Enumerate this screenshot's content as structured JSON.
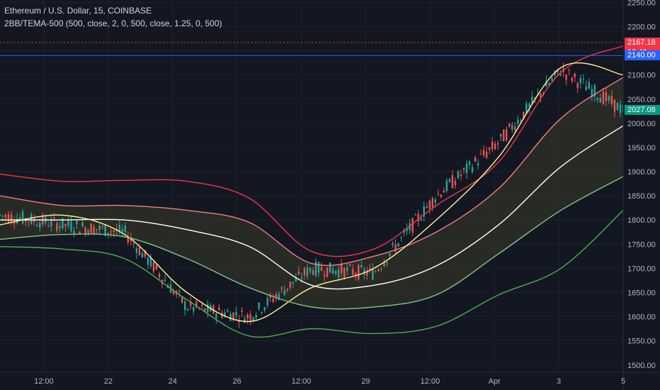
{
  "legend": {
    "symbol_line": "Ethereum / U.S. Dollar, 15, COINBASE",
    "indicator_line": "2BB/TEMA-500 (500, close, 2, 0, 500, close, 1.25, 0, 500)"
  },
  "price_tags": {
    "upper_band": {
      "price": "2167.18",
      "time": "13:48",
      "color": "#f23645"
    },
    "alert_line": {
      "price": "2140.00",
      "color": "#2962ff"
    },
    "last_price": {
      "price": "2027.08",
      "color": "#089981"
    }
  },
  "chart_data": {
    "type": "line",
    "title": "",
    "x_ticks": [
      "12:00",
      "22",
      "24",
      "26",
      "12:00",
      "29",
      "12:00",
      "Apr",
      "3",
      "5"
    ],
    "y_ticks": [
      1500,
      1550,
      1600,
      1650,
      1700,
      1750,
      1800,
      1850,
      1900,
      1950,
      2000,
      2050,
      2100,
      2150,
      2200,
      2250
    ],
    "y_tick_labels": [
      "1500.00",
      "1550.00",
      "1600.00",
      "1650.00",
      "1700.00",
      "1750.00",
      "1800.00",
      "1850.00",
      "1900.00",
      "1950.00",
      "2000.00",
      "2050.00",
      "2100.00",
      "2150.00",
      "2200.00",
      "2250.00"
    ],
    "ylim": [
      1485,
      2255
    ],
    "x_index": [
      0,
      10,
      20,
      30,
      40,
      50,
      60,
      70,
      80,
      90,
      100
    ],
    "series": [
      {
        "color": "#f23645",
        "values": [
          1895,
          1880,
          1882,
          1880,
          1845,
          1735,
          1740,
          1830,
          1920,
          2105,
          2160
        ]
      },
      {
        "color": "#f77c80",
        "values": [
          1850,
          1830,
          1830,
          1820,
          1795,
          1710,
          1725,
          1775,
          1865,
          2010,
          2095
        ]
      },
      {
        "color": "#ffffff",
        "values": [
          1800,
          1800,
          1800,
          1780,
          1745,
          1665,
          1665,
          1705,
          1790,
          1910,
          1995
        ]
      },
      {
        "color": "#fdf59a",
        "values": [
          1790,
          1810,
          1770,
          1650,
          1590,
          1660,
          1700,
          1800,
          1930,
          2115,
          2100
        ]
      },
      {
        "color": "#81c784",
        "values": [
          1760,
          1770,
          1765,
          1720,
          1660,
          1620,
          1620,
          1645,
          1730,
          1820,
          1890
        ]
      },
      {
        "color": "#4caf50",
        "values": [
          1745,
          1740,
          1720,
          1635,
          1560,
          1575,
          1565,
          1580,
          1645,
          1700,
          1820
        ]
      },
      {
        "color": "#26a69a",
        "values": [
          1810,
          1790,
          1775,
          1620,
          1600,
          1700,
          1690,
          1850,
          1960,
          2110,
          2027
        ]
      }
    ],
    "band_fill": {
      "from_series": 1,
      "to_series": 4,
      "color": "#3a3a2a"
    },
    "horizontal_lines": [
      {
        "value": 2167.18,
        "color": "#f23645",
        "style": "dotted"
      },
      {
        "value": 2140,
        "color": "#2962ff",
        "style": "solid"
      }
    ],
    "candles": {
      "up_color": "#26a69a",
      "down_color": "#ef5350"
    },
    "grid": true
  }
}
